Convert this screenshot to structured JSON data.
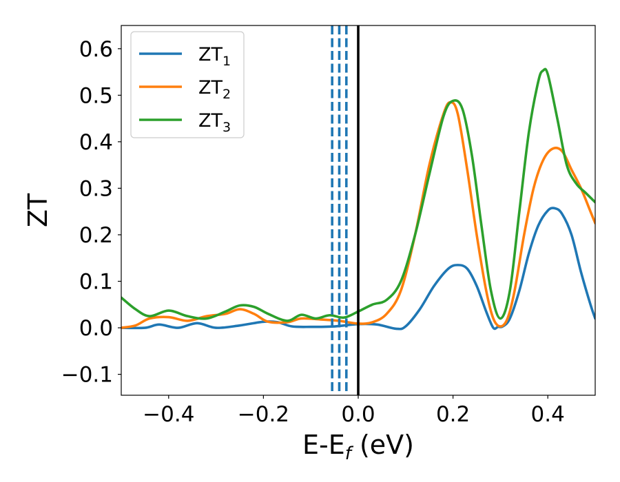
{
  "chart_data": {
    "type": "line",
    "xlabel": {
      "main": "E-E",
      "sub": "f",
      "suffix": " (eV)"
    },
    "ylabel": "ZT",
    "xlim": [
      -0.5,
      0.5
    ],
    "ylim": [
      -0.145,
      0.65
    ],
    "x_ticks": [
      -0.4,
      -0.2,
      0.0,
      0.2,
      0.4
    ],
    "x_tick_labels": [
      "−0.4",
      "−0.2",
      "0.0",
      "0.2",
      "0.4"
    ],
    "y_ticks": [
      -0.1,
      0.0,
      0.1,
      0.2,
      0.3,
      0.4,
      0.5,
      0.6
    ],
    "y_tick_labels": [
      "−0.1",
      "0.0",
      "0.1",
      "0.2",
      "0.3",
      "0.4",
      "0.5",
      "0.6"
    ],
    "grid": false,
    "legend_position": "top-left",
    "vertical_lines": [
      {
        "x": 0.0,
        "style": "solid",
        "color": "#000000"
      },
      {
        "x": -0.055,
        "style": "dashed",
        "color": "#1f77b4"
      },
      {
        "x": -0.04,
        "style": "dashed",
        "color": "#1f77b4"
      },
      {
        "x": -0.025,
        "style": "dashed",
        "color": "#1f77b4"
      }
    ],
    "series": [
      {
        "name": "ZT",
        "sub": "1",
        "color": "#1f77b4",
        "points": [
          [
            -0.5,
            0.0
          ],
          [
            -0.45,
            0.0
          ],
          [
            -0.42,
            0.007
          ],
          [
            -0.38,
            0.0
          ],
          [
            -0.34,
            0.01
          ],
          [
            -0.3,
            0.0
          ],
          [
            -0.25,
            0.005
          ],
          [
            -0.2,
            0.013
          ],
          [
            -0.17,
            0.012
          ],
          [
            -0.14,
            0.003
          ],
          [
            -0.1,
            0.002
          ],
          [
            -0.05,
            0.003
          ],
          [
            0.0,
            0.008
          ],
          [
            0.04,
            0.007
          ],
          [
            0.08,
            -0.002
          ],
          [
            0.1,
            0.003
          ],
          [
            0.13,
            0.04
          ],
          [
            0.16,
            0.09
          ],
          [
            0.19,
            0.127
          ],
          [
            0.21,
            0.135
          ],
          [
            0.23,
            0.127
          ],
          [
            0.25,
            0.09
          ],
          [
            0.27,
            0.035
          ],
          [
            0.285,
            0.0
          ],
          [
            0.295,
            0.002
          ],
          [
            0.305,
            0.003
          ],
          [
            0.32,
            0.02
          ],
          [
            0.34,
            0.08
          ],
          [
            0.36,
            0.16
          ],
          [
            0.38,
            0.22
          ],
          [
            0.4,
            0.252
          ],
          [
            0.415,
            0.257
          ],
          [
            0.43,
            0.245
          ],
          [
            0.45,
            0.2
          ],
          [
            0.47,
            0.12
          ],
          [
            0.49,
            0.05
          ],
          [
            0.5,
            0.02
          ]
        ]
      },
      {
        "name": "ZT",
        "sub": "2",
        "color": "#ff7f0e",
        "points": [
          [
            -0.5,
            0.0
          ],
          [
            -0.47,
            0.005
          ],
          [
            -0.44,
            0.02
          ],
          [
            -0.4,
            0.023
          ],
          [
            -0.36,
            0.015
          ],
          [
            -0.32,
            0.025
          ],
          [
            -0.28,
            0.03
          ],
          [
            -0.25,
            0.04
          ],
          [
            -0.22,
            0.03
          ],
          [
            -0.19,
            0.013
          ],
          [
            -0.15,
            0.012
          ],
          [
            -0.12,
            0.02
          ],
          [
            -0.08,
            0.018
          ],
          [
            -0.04,
            0.015
          ],
          [
            0.0,
            0.009
          ],
          [
            0.03,
            0.012
          ],
          [
            0.06,
            0.03
          ],
          [
            0.09,
            0.08
          ],
          [
            0.12,
            0.2
          ],
          [
            0.15,
            0.35
          ],
          [
            0.18,
            0.46
          ],
          [
            0.195,
            0.485
          ],
          [
            0.21,
            0.46
          ],
          [
            0.23,
            0.34
          ],
          [
            0.25,
            0.2
          ],
          [
            0.27,
            0.08
          ],
          [
            0.285,
            0.02
          ],
          [
            0.3,
            0.003
          ],
          [
            0.315,
            0.02
          ],
          [
            0.33,
            0.08
          ],
          [
            0.35,
            0.2
          ],
          [
            0.37,
            0.3
          ],
          [
            0.39,
            0.36
          ],
          [
            0.41,
            0.385
          ],
          [
            0.43,
            0.38
          ],
          [
            0.45,
            0.34
          ],
          [
            0.47,
            0.3
          ],
          [
            0.49,
            0.25
          ],
          [
            0.5,
            0.225
          ]
        ]
      },
      {
        "name": "ZT",
        "sub": "3",
        "color": "#2ca02c",
        "points": [
          [
            -0.5,
            0.065
          ],
          [
            -0.47,
            0.04
          ],
          [
            -0.44,
            0.025
          ],
          [
            -0.4,
            0.037
          ],
          [
            -0.36,
            0.025
          ],
          [
            -0.32,
            0.02
          ],
          [
            -0.28,
            0.035
          ],
          [
            -0.25,
            0.048
          ],
          [
            -0.22,
            0.045
          ],
          [
            -0.19,
            0.03
          ],
          [
            -0.15,
            0.015
          ],
          [
            -0.12,
            0.028
          ],
          [
            -0.09,
            0.02
          ],
          [
            -0.06,
            0.027
          ],
          [
            -0.03,
            0.022
          ],
          [
            0.0,
            0.035
          ],
          [
            0.03,
            0.05
          ],
          [
            0.06,
            0.06
          ],
          [
            0.09,
            0.1
          ],
          [
            0.12,
            0.2
          ],
          [
            0.15,
            0.33
          ],
          [
            0.18,
            0.455
          ],
          [
            0.2,
            0.488
          ],
          [
            0.22,
            0.47
          ],
          [
            0.24,
            0.37
          ],
          [
            0.26,
            0.22
          ],
          [
            0.28,
            0.08
          ],
          [
            0.3,
            0.02
          ],
          [
            0.32,
            0.08
          ],
          [
            0.34,
            0.25
          ],
          [
            0.36,
            0.42
          ],
          [
            0.38,
            0.53
          ],
          [
            0.39,
            0.553
          ],
          [
            0.4,
            0.545
          ],
          [
            0.42,
            0.45
          ],
          [
            0.44,
            0.35
          ],
          [
            0.46,
            0.31
          ],
          [
            0.48,
            0.29
          ],
          [
            0.5,
            0.27
          ]
        ]
      }
    ]
  }
}
